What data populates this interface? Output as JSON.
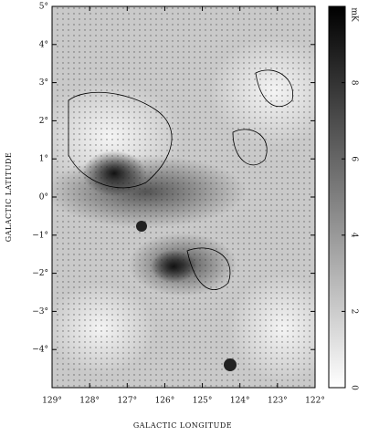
{
  "chart_data": {
    "type": "image",
    "xlabel": "GALACTIC LONGITUDE",
    "ylabel": "GALACTIC LATITUDE",
    "xlim": [
      129,
      122
    ],
    "ylim": [
      -5,
      5
    ],
    "xticks": [
      {
        "value": 129,
        "label": "129°"
      },
      {
        "value": 128,
        "label": "128°"
      },
      {
        "value": 127,
        "label": "127°"
      },
      {
        "value": 126,
        "label": "126°"
      },
      {
        "value": 125,
        "label": "125°"
      },
      {
        "value": 124,
        "label": "124°"
      },
      {
        "value": 123,
        "label": "123°"
      },
      {
        "value": 122,
        "label": "122°"
      }
    ],
    "yticks": [
      {
        "value": 5,
        "label": "5°"
      },
      {
        "value": 4,
        "label": "4°"
      },
      {
        "value": 3,
        "label": "3°"
      },
      {
        "value": 2,
        "label": "2°"
      },
      {
        "value": 1,
        "label": "1°"
      },
      {
        "value": 0,
        "label": "0°"
      },
      {
        "value": -1,
        "label": "−1°"
      },
      {
        "value": -2,
        "label": "−2°"
      },
      {
        "value": -3,
        "label": "−3°"
      },
      {
        "value": -4,
        "label": "−4°"
      }
    ],
    "colorbar": {
      "label": "mK",
      "lim": [
        0,
        10
      ],
      "ticks": [
        0,
        2,
        4,
        6,
        8
      ]
    }
  }
}
